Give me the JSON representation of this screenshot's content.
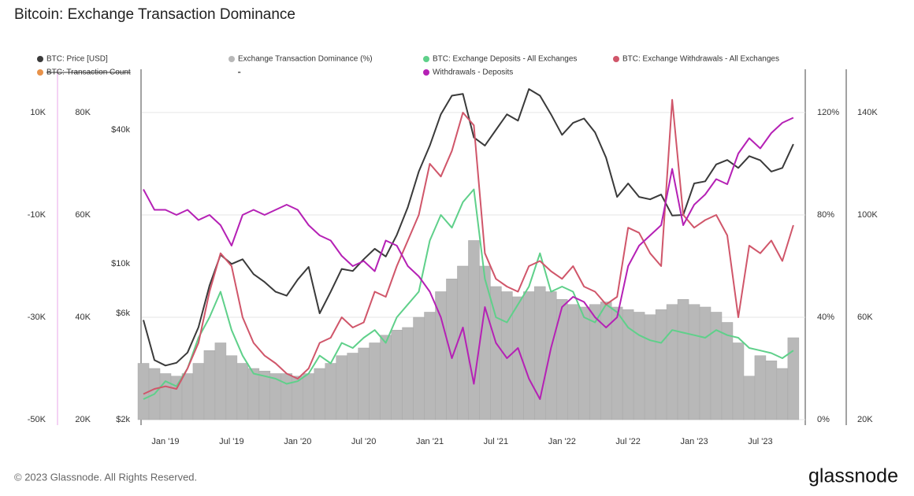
{
  "chart_data": {
    "type": "line",
    "title": "Bitcoin: Exchange Transaction Dominance",
    "footer": "© 2023 Glassnode. All Rights Reserved.",
    "brand": "glassnode",
    "x": [
      "2018-11",
      "2018-12",
      "2019-01",
      "2019-02",
      "2019-03",
      "2019-04",
      "2019-05",
      "2019-06",
      "2019-07",
      "2019-08",
      "2019-09",
      "2019-10",
      "2019-11",
      "2019-12",
      "2020-01",
      "2020-02",
      "2020-03",
      "2020-04",
      "2020-05",
      "2020-06",
      "2020-07",
      "2020-08",
      "2020-09",
      "2020-10",
      "2020-11",
      "2020-12",
      "2021-01",
      "2021-02",
      "2021-03",
      "2021-04",
      "2021-05",
      "2021-06",
      "2021-07",
      "2021-08",
      "2021-09",
      "2021-10",
      "2021-11",
      "2021-12",
      "2022-01",
      "2022-02",
      "2022-03",
      "2022-04",
      "2022-05",
      "2022-06",
      "2022-07",
      "2022-08",
      "2022-09",
      "2022-10",
      "2022-11",
      "2022-12",
      "2023-01",
      "2023-02",
      "2023-03",
      "2023-04",
      "2023-05",
      "2023-06",
      "2023-07",
      "2023-08",
      "2023-09",
      "2023-10"
    ],
    "xticks": [
      {
        "value": "2019-01",
        "label": "Jan '19"
      },
      {
        "value": "2019-07",
        "label": "Jul '19"
      },
      {
        "value": "2020-01",
        "label": "Jan '20"
      },
      {
        "value": "2020-07",
        "label": "Jul '20"
      },
      {
        "value": "2021-01",
        "label": "Jan '21"
      },
      {
        "value": "2021-07",
        "label": "Jul '21"
      },
      {
        "value": "2022-01",
        "label": "Jan '22"
      },
      {
        "value": "2022-07",
        "label": "Jul '22"
      },
      {
        "value": "2023-01",
        "label": "Jan '23"
      },
      {
        "value": "2023-07",
        "label": "Jul '23"
      }
    ],
    "ylim": [
      2000,
      74850
    ],
    "ylog": true,
    "yticks": [
      {
        "value": 2000,
        "label": "$2k"
      },
      {
        "value": 6000,
        "label": "$6k"
      },
      {
        "value": 10000,
        "label": "$10k"
      },
      {
        "value": 40000,
        "label": "$40k"
      }
    ],
    "y2lim": [
      0,
      136.9
    ],
    "y2ticks": [
      {
        "value": 0,
        "label": "0%"
      },
      {
        "value": 40,
        "label": "40%"
      },
      {
        "value": 80,
        "label": "80%"
      },
      {
        "value": 120,
        "label": "120%"
      }
    ],
    "y3lim": [
      20000,
      156920
    ],
    "y3ticks": [
      {
        "value": 20000,
        "label": "20K"
      },
      {
        "value": 60000,
        "label": "60K"
      },
      {
        "value": 100000,
        "label": "100K"
      },
      {
        "value": 140000,
        "label": "140K"
      }
    ],
    "y4lim": [
      -50000,
      18460
    ],
    "y4ticks": [
      {
        "value": -50000,
        "label": "-50K"
      },
      {
        "value": -30000,
        "label": "-30K"
      },
      {
        "value": -10000,
        "label": "-10K"
      },
      {
        "value": 10000,
        "label": "10K"
      }
    ],
    "y5lim": [
      20000,
      88460
    ],
    "y5ticks": [
      {
        "value": 20000,
        "label": "20K"
      },
      {
        "value": 40000,
        "label": "40K"
      },
      {
        "value": 60000,
        "label": "60K"
      },
      {
        "value": 80000,
        "label": "80K"
      }
    ],
    "grid": true,
    "inactive_legend": [
      {
        "name": "BTC: Transaction Count",
        "color": "#e8924a"
      },
      {
        "name": "-",
        "color": null
      }
    ],
    "series": [
      {
        "name": "BTC: Price [USD]",
        "color": "#3a3a3a",
        "axis": "y",
        "values": [
          5600,
          3700,
          3500,
          3600,
          4000,
          5200,
          8000,
          11000,
          10000,
          10500,
          9000,
          8300,
          7500,
          7200,
          8500,
          9700,
          6000,
          7500,
          9500,
          9300,
          10500,
          11700,
          10800,
          13500,
          18000,
          26000,
          34000,
          47000,
          57000,
          58000,
          37000,
          34000,
          40000,
          47000,
          44000,
          61000,
          57000,
          47000,
          38000,
          43000,
          45000,
          39000,
          30000,
          20000,
          23000,
          20000,
          19500,
          20500,
          16500,
          16600,
          23000,
          23500,
          28000,
          29300,
          27000,
          30500,
          29200,
          26000,
          27000,
          34500
        ]
      },
      {
        "name": "Exchange Transaction Dominance (%)",
        "color": "#b8b8b8",
        "axis": "y2",
        "kind": "bar",
        "values": [
          22,
          20,
          18,
          17,
          18,
          22,
          27,
          30,
          25,
          22,
          20,
          19,
          18,
          18,
          17,
          18,
          20,
          22,
          25,
          26,
          28,
          30,
          33,
          35,
          36,
          40,
          42,
          50,
          55,
          60,
          70,
          60,
          52,
          50,
          48,
          50,
          52,
          50,
          47,
          45,
          44,
          45,
          46,
          44,
          43,
          42,
          41,
          43,
          45,
          47,
          45,
          44,
          42,
          38,
          30,
          17,
          25,
          23,
          20,
          32
        ]
      },
      {
        "name": "BTC: Exchange Deposits - All Exchanges",
        "color": "#5fd08a",
        "axis": "y3",
        "values": [
          28000,
          30000,
          35000,
          33000,
          40000,
          52000,
          60000,
          70000,
          55000,
          45000,
          38000,
          37000,
          36000,
          34000,
          35000,
          38000,
          45000,
          42000,
          50000,
          48000,
          52000,
          55000,
          50000,
          60000,
          65000,
          70000,
          90000,
          100000,
          95000,
          105000,
          110000,
          75000,
          60000,
          58000,
          65000,
          72000,
          85000,
          70000,
          72000,
          70000,
          60000,
          58000,
          65000,
          62000,
          56000,
          53000,
          51000,
          50000,
          55000,
          54000,
          53000,
          52000,
          55000,
          53000,
          52000,
          48000,
          47000,
          46000,
          44000,
          47000
        ]
      },
      {
        "name": "BTC: Exchange Withdrawals - All Exchanges",
        "color": "#d0566a",
        "axis": "y3",
        "values": [
          30000,
          32000,
          33000,
          32000,
          40000,
          50000,
          70000,
          85000,
          80000,
          60000,
          50000,
          45000,
          42000,
          38000,
          36000,
          40000,
          50000,
          52000,
          60000,
          56000,
          58000,
          70000,
          68000,
          80000,
          90000,
          100000,
          120000,
          115000,
          125000,
          140000,
          135000,
          85000,
          75000,
          72000,
          70000,
          80000,
          82000,
          78000,
          75000,
          80000,
          72000,
          70000,
          65000,
          68000,
          95000,
          93000,
          85000,
          80000,
          145000,
          100000,
          95000,
          98000,
          100000,
          92000,
          60000,
          88000,
          85000,
          90000,
          82000,
          96000
        ]
      },
      {
        "name": "Withdrawals - Deposits",
        "color": "#b521b5",
        "axis": "y4",
        "values": [
          -5000,
          -9000,
          -9000,
          -10000,
          -9000,
          -11000,
          -10000,
          -12000,
          -16000,
          -10000,
          -9000,
          -10000,
          -9000,
          -8000,
          -9000,
          -12000,
          -14000,
          -15000,
          -18000,
          -20000,
          -19000,
          -21000,
          -15000,
          -16000,
          -20000,
          -22000,
          -25000,
          -30000,
          -38000,
          -32000,
          -43000,
          -28000,
          -35000,
          -38000,
          -36000,
          -42000,
          -46000,
          -36000,
          -28000,
          -26000,
          -27000,
          -30000,
          -32000,
          -30000,
          -20000,
          -16000,
          -14000,
          -12000,
          -1000,
          -12000,
          -8000,
          -6000,
          -3000,
          -4000,
          2000,
          5000,
          3000,
          6000,
          8000,
          9000
        ]
      }
    ]
  }
}
